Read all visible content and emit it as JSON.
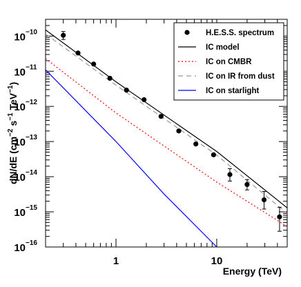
{
  "chart_data": {
    "type": "line",
    "xlabel": "Energy (TeV)",
    "ylabel": "dN/dE (cm",
    "ylabel_parts": {
      "base": "dN/dE (cm",
      "sup1": "−2",
      "mid": " s",
      "sup2": "−1",
      "mid2": " TeV",
      "sup3": "−1",
      "end": ")"
    },
    "xscale": "log",
    "yscale": "log",
    "xlim": [
      0.2,
      50
    ],
    "ylim": [
      1e-16,
      3e-10
    ],
    "x_ticks": [
      {
        "value": 1,
        "label": "1"
      },
      {
        "value": 10,
        "label": "10"
      }
    ],
    "y_ticks": [
      {
        "value": 1e-10,
        "base": "10",
        "exp": "−10"
      },
      {
        "value": 1e-11,
        "base": "10",
        "exp": "−11"
      },
      {
        "value": 1e-12,
        "base": "10",
        "exp": "−12"
      },
      {
        "value": 1e-13,
        "base": "10",
        "exp": "−13"
      },
      {
        "value": 1e-14,
        "base": "10",
        "exp": "−14"
      },
      {
        "value": 1e-15,
        "base": "10",
        "exp": "−15"
      },
      {
        "value": 1e-16,
        "base": "10",
        "exp": "−16"
      }
    ],
    "legend_position": "top-right",
    "series": [
      {
        "name": "H.E.S.S. spectrum",
        "kind": "points",
        "color": "#000000",
        "points": [
          {
            "x": 0.3,
            "y": 1.05e-10,
            "ylo": 8e-11,
            "yhi": 1.35e-10
          },
          {
            "x": 0.42,
            "y": 3.3e-11
          },
          {
            "x": 0.6,
            "y": 1.6e-11
          },
          {
            "x": 0.87,
            "y": 6.3e-12
          },
          {
            "x": 1.27,
            "y": 2.9e-12
          },
          {
            "x": 1.9,
            "y": 1.55e-12
          },
          {
            "x": 2.8,
            "y": 5.2e-13
          },
          {
            "x": 4.2,
            "y": 2e-13
          },
          {
            "x": 6.2,
            "y": 8.5e-14
          },
          {
            "x": 9.3,
            "y": 4.2e-14
          },
          {
            "x": 13.5,
            "y": 1.15e-14,
            "ylo": 7.5e-15,
            "yhi": 1.7e-14
          },
          {
            "x": 20,
            "y": 6e-15,
            "ylo": 4.2e-15,
            "yhi": 8.3e-15
          },
          {
            "x": 29.5,
            "y": 2.2e-15,
            "ylo": 1.2e-15,
            "yhi": 3.8e-15
          },
          {
            "x": 42,
            "y": 7.2e-16,
            "ylo": 2.8e-16,
            "yhi": 1.35e-15
          }
        ]
      },
      {
        "name": "IC model",
        "kind": "line",
        "color": "#000000",
        "dash": "",
        "points": [
          [
            0.2,
            1.5e-10
          ],
          [
            1,
            5e-12
          ],
          [
            10,
            5.2e-14
          ],
          [
            50,
            1.3e-15
          ]
        ]
      },
      {
        "name": "IC on CMBR",
        "kind": "line",
        "color": "#ff0000",
        "dash": "2,3",
        "points": [
          [
            0.2,
            2.3e-11
          ],
          [
            1,
            6.5e-13
          ],
          [
            10,
            7e-15
          ],
          [
            50,
            3.8e-16
          ]
        ]
      },
      {
        "name": "IC on IR from dust",
        "kind": "line",
        "color": "#999999",
        "dash": "7,5",
        "points": [
          [
            0.2,
            1.15e-10
          ],
          [
            1,
            4e-12
          ],
          [
            10,
            4.1e-14
          ],
          [
            50,
            9e-16
          ]
        ]
      },
      {
        "name": "IC on starlight",
        "kind": "line",
        "color": "#0000ff",
        "dash": "",
        "points": [
          [
            0.2,
            1.1e-11
          ],
          [
            1,
            1e-13
          ],
          [
            3,
            3.2e-15
          ],
          [
            10,
            1e-16
          ]
        ]
      }
    ]
  }
}
